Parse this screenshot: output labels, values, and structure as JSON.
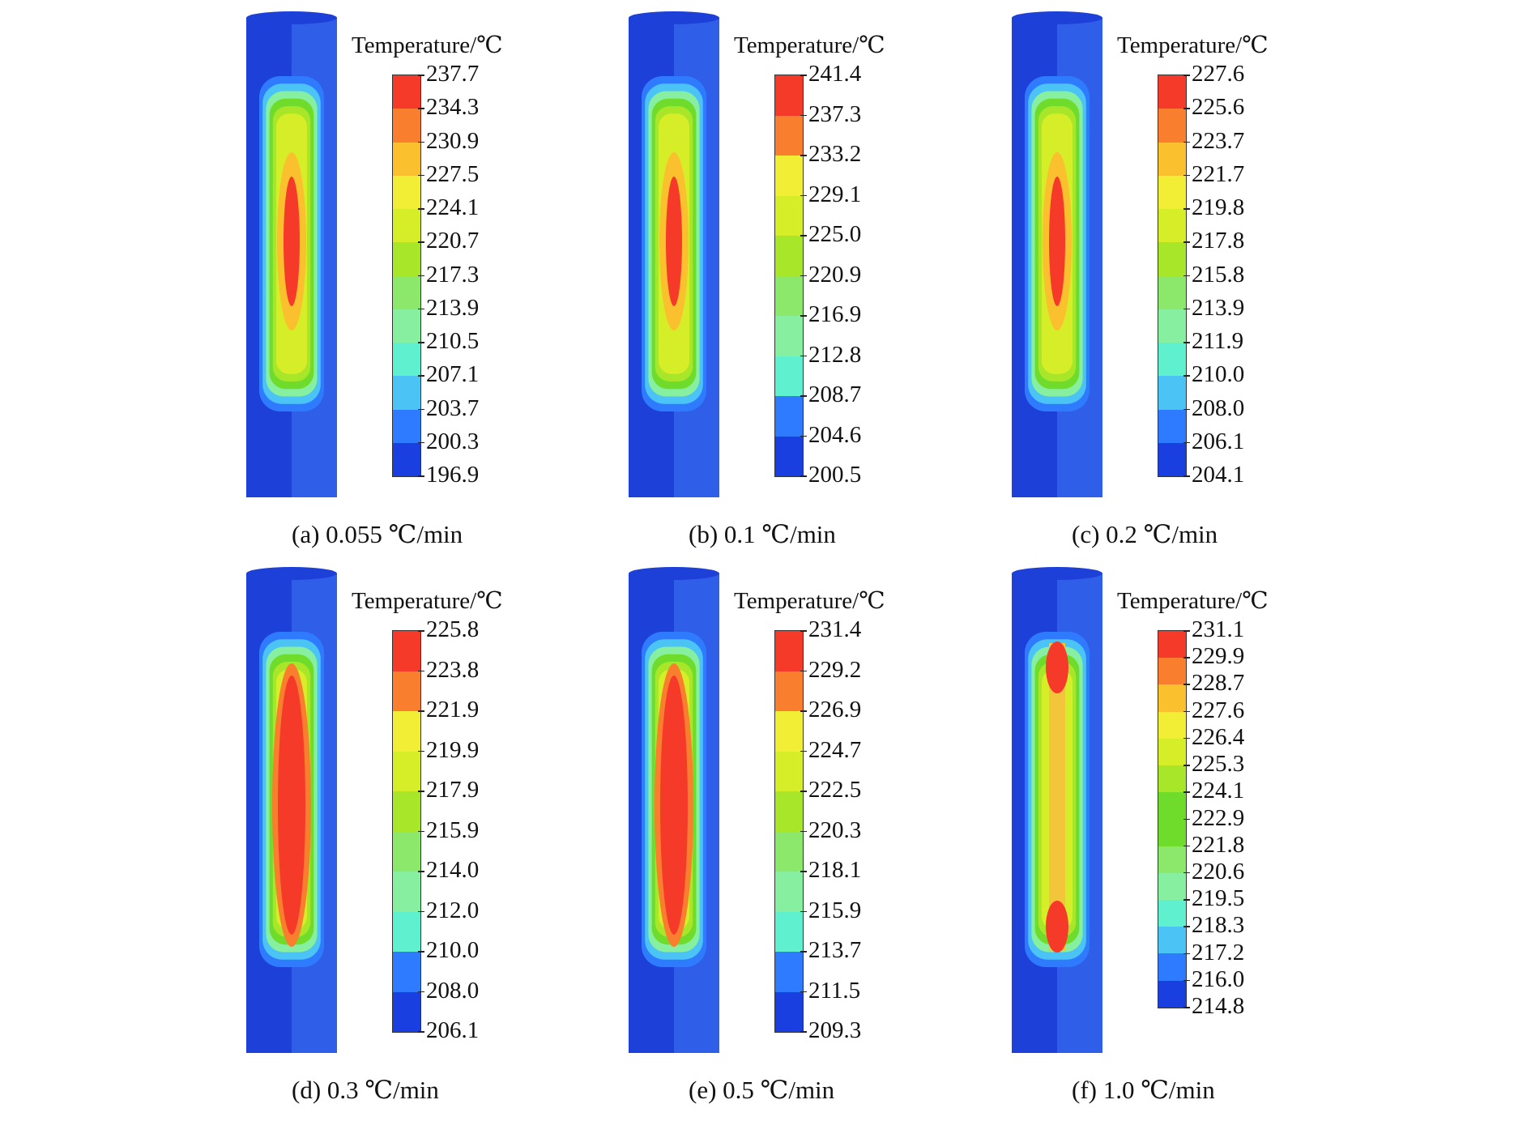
{
  "legend_title": "Temperature/℃",
  "colors": {
    "scale": [
      "#1a3fe0",
      "#2f7bff",
      "#4cc3f5",
      "#5ff0d0",
      "#86f0a0",
      "#8be86a",
      "#6fdc2c",
      "#a8e62a",
      "#d6ee28",
      "#f2ee36",
      "#fbc02d",
      "#f97f2e",
      "#f53a2a"
    ],
    "outer": "#2f5fe8",
    "outer_dark": "#1c40d8"
  },
  "panels": [
    {
      "caption": "(a) 0.055 ℃/min",
      "levels": [
        "237.7",
        "234.3",
        "230.9",
        "227.5",
        "224.1",
        "220.7",
        "217.3",
        "213.9",
        "210.5",
        "207.1",
        "203.7",
        "200.3",
        "196.9"
      ],
      "hot_pattern": "center"
    },
    {
      "caption": "(b) 0.1 ℃/min",
      "levels": [
        "241.4",
        "237.3",
        "233.2",
        "229.1",
        "225.0",
        "220.9",
        "216.9",
        "212.8",
        "208.7",
        "204.6",
        "200.5"
      ],
      "hot_pattern": "center"
    },
    {
      "caption": "(c) 0.2 ℃/min",
      "levels": [
        "227.6",
        "225.6",
        "223.7",
        "221.7",
        "219.8",
        "217.8",
        "215.8",
        "213.9",
        "211.9",
        "210.0",
        "208.0",
        "206.1",
        "204.1"
      ],
      "hot_pattern": "center"
    },
    {
      "caption": "(d) 0.3 ℃/min",
      "levels": [
        "225.8",
        "223.8",
        "221.9",
        "219.9",
        "217.9",
        "215.9",
        "214.0",
        "212.0",
        "210.0",
        "208.0",
        "206.1"
      ],
      "hot_pattern": "long"
    },
    {
      "caption": "(e) 0.5 ℃/min",
      "levels": [
        "231.4",
        "229.2",
        "226.9",
        "224.7",
        "222.5",
        "220.3",
        "218.1",
        "215.9",
        "213.7",
        "211.5",
        "209.3"
      ],
      "hot_pattern": "long"
    },
    {
      "caption": "(f) 1.0 ℃/min",
      "levels": [
        "231.1",
        "229.9",
        "228.7",
        "227.6",
        "226.4",
        "225.3",
        "224.1",
        "222.9",
        "221.8",
        "220.6",
        "219.5",
        "218.3",
        "217.2",
        "216.0",
        "214.8"
      ],
      "hot_pattern": "two-ends"
    }
  ]
}
